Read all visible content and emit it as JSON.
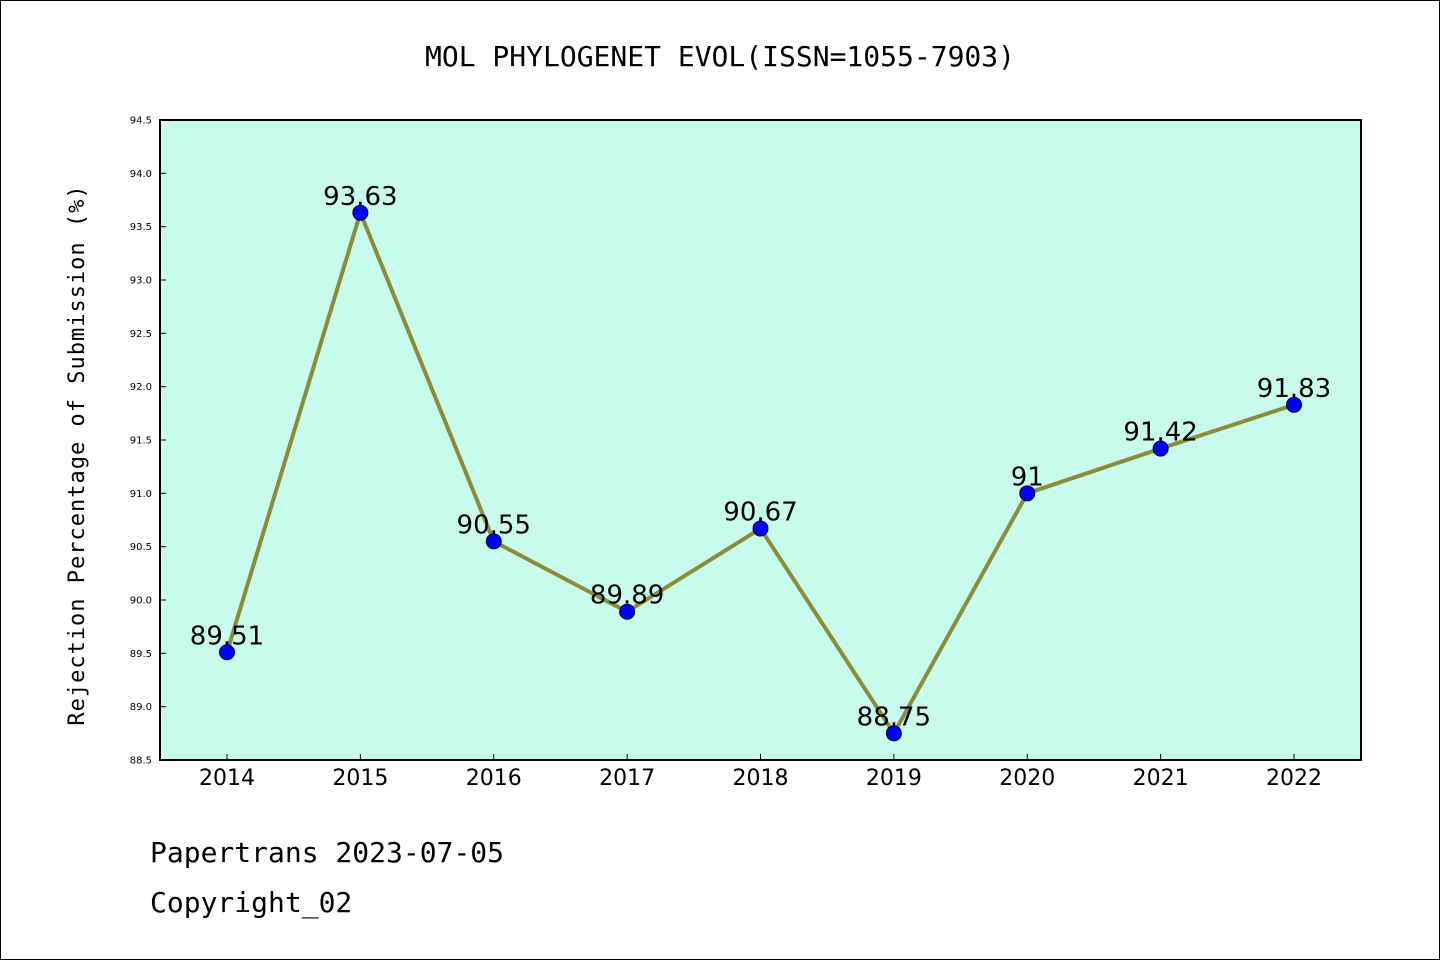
{
  "chart_data": {
    "type": "line",
    "title": "MOL PHYLOGENET EVOL(ISSN=1055-7903)",
    "xlabel": "",
    "ylabel": "Rejection Percentage of Submission (%)",
    "categories": [
      "2014",
      "2015",
      "2016",
      "2017",
      "2018",
      "2019",
      "2020",
      "2021",
      "2022"
    ],
    "values": [
      89.51,
      93.63,
      90.55,
      89.89,
      90.67,
      88.75,
      91,
      91.42,
      91.83
    ],
    "data_labels": [
      "89.51",
      "93.63",
      "90.55",
      "89.89",
      "90.67",
      "88.75",
      "91",
      "91.42",
      "91.83"
    ],
    "ylim": [
      88.5,
      94.5
    ],
    "yticks": [
      "88.5",
      "89.0",
      "89.5",
      "90.0",
      "90.5",
      "91.0",
      "91.5",
      "92.0",
      "92.5",
      "93.0",
      "93.5",
      "94.0",
      "94.5"
    ],
    "grid": false,
    "legend": "none",
    "colors": {
      "line": "#8B8B3A",
      "marker": "#0000FF",
      "plot_background": "#C7FCEC",
      "axes": "#000000"
    }
  },
  "footer": {
    "line1": "Papertrans 2023-07-05",
    "line2": "Copyright_02"
  }
}
